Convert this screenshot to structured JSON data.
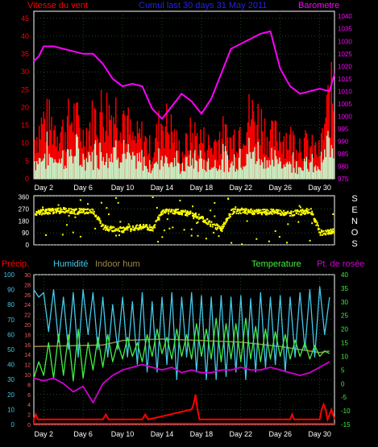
{
  "header": {
    "wind_label": "Vitesse du vent",
    "title": "Cumul last 30 days 31 May 2011",
    "baro_label": "Barometre"
  },
  "labels": {
    "senos": [
      "S",
      "E",
      "N",
      "O",
      "S"
    ],
    "precip": "Précip.",
    "humidity": "Humidité",
    "indoor": "Indoor hum",
    "temperature": "Temperature",
    "dewpoint": "Pt. de rosée"
  },
  "colors": {
    "bg": "#000000",
    "grid": "#2f7a2f",
    "wind": "#ff0000",
    "gust_fill": "#c8f5c8",
    "baro": "#ff00ff",
    "dir": "#ffff00",
    "precip": "#ff0000",
    "hum": "#44c8e8",
    "indoor": "#9c8a48",
    "temp": "#44ee44",
    "dew": "#d000d0",
    "axis_text": "#ffffff"
  },
  "chart_data": [
    {
      "type": "area",
      "title": "Cumul last 30 days 31 May 2011",
      "x_ticks": [
        "Day 2",
        "Day 6",
        "Day 10",
        "Day 14",
        "Day 18",
        "Day 22",
        "Day 26",
        "Day 30"
      ],
      "x_range": [
        1,
        31.5
      ],
      "left_axis": {
        "label": "Vitesse du vent",
        "ticks": [
          0,
          5,
          10,
          15,
          20,
          25,
          30,
          35,
          40,
          45
        ],
        "range": [
          0,
          47
        ]
      },
      "right_axis": {
        "label": "Barometre",
        "ticks": [
          975,
          980,
          985,
          990,
          995,
          1000,
          1005,
          1010,
          1015,
          1020,
          1025,
          1030,
          1035,
          1040
        ],
        "range": [
          975,
          1042
        ]
      },
      "series": [
        {
          "name": "Vitesse du vent",
          "axis": "left",
          "x": [
            1,
            2,
            3,
            4,
            5,
            6,
            7,
            8,
            9,
            10,
            11,
            12,
            13,
            14,
            15,
            16,
            17,
            18,
            19,
            20,
            21,
            22,
            23,
            24,
            25,
            26,
            27,
            28,
            29,
            30,
            31
          ],
          "values": [
            15,
            22,
            20,
            18,
            24,
            16,
            22,
            26,
            25,
            27,
            14,
            16,
            10,
            23,
            18,
            9,
            17,
            15,
            12,
            17,
            14,
            20,
            24,
            22,
            15,
            17,
            15,
            14,
            12,
            10,
            30
          ]
        },
        {
          "name": "Barometre",
          "axis": "right",
          "x": [
            1,
            1.5,
            2,
            3,
            4,
            5,
            6,
            7,
            8,
            9,
            10,
            11,
            12,
            13,
            14,
            15,
            16,
            17,
            18,
            19,
            20,
            21,
            22,
            23,
            24,
            25,
            26,
            27,
            28,
            29,
            30,
            31,
            31.5
          ],
          "values": [
            1022,
            1024,
            1028,
            1028,
            1027,
            1026,
            1025,
            1025,
            1021,
            1015,
            1012,
            1013,
            1012,
            1003,
            999,
            1004,
            1009,
            1006,
            1001,
            1007,
            1017,
            1027,
            1029,
            1031,
            1033,
            1034,
            1019,
            1012,
            1009,
            1010,
            1011,
            1010,
            1017
          ]
        }
      ]
    },
    {
      "type": "scatter",
      "title": "",
      "y_ticks": [
        0,
        90,
        180,
        270,
        360
      ],
      "range": [
        0,
        370
      ],
      "x_range": [
        1,
        31.5
      ],
      "series": [
        {
          "name": "Wind direction",
          "x": [
            1,
            2,
            3,
            4,
            5,
            6,
            7,
            8,
            9,
            10,
            11,
            12,
            13,
            14,
            15,
            16,
            17,
            18,
            19,
            20,
            21,
            22,
            23,
            24,
            25,
            26,
            27,
            28,
            29,
            30,
            31
          ],
          "values": [
            240,
            250,
            255,
            260,
            250,
            255,
            250,
            130,
            120,
            115,
            125,
            135,
            125,
            250,
            255,
            245,
            230,
            200,
            150,
            120,
            250,
            255,
            250,
            245,
            250,
            240,
            235,
            245,
            260,
            90,
            100
          ]
        }
      ]
    },
    {
      "type": "line",
      "title": "",
      "x_ticks": [
        "Day 2",
        "Day 6",
        "Day 10",
        "Day 14",
        "Day 18",
        "Day 22",
        "Day 26",
        "Day 30"
      ],
      "x_range": [
        1,
        31.5
      ],
      "humidity_axis": {
        "ticks": [
          0,
          10,
          20,
          30,
          40,
          50,
          60,
          70,
          80,
          90,
          100
        ],
        "range": [
          0,
          100
        ]
      },
      "precip_axis": {
        "ticks": [
          0,
          2,
          4,
          6,
          8,
          10,
          12,
          14,
          16,
          18,
          20,
          22,
          24,
          26,
          28,
          30
        ],
        "range": [
          0,
          30
        ]
      },
      "temp_axis": {
        "ticks": [
          -15,
          -10,
          -5,
          0,
          5,
          10,
          15,
          20,
          25,
          30,
          35,
          40
        ],
        "range": [
          -15,
          40
        ]
      },
      "series": [
        {
          "name": "Humidité",
          "axis": "humidity",
          "x": [
            1,
            1.5,
            2,
            2.5,
            3,
            3.5,
            4,
            4.5,
            5,
            5.5,
            6,
            6.5,
            7,
            7.5,
            8,
            8.5,
            9,
            9.5,
            10,
            10.5,
            11,
            11.5,
            12,
            12.5,
            13,
            13.5,
            14,
            14.5,
            15,
            15.5,
            16,
            16.5,
            17,
            17.5,
            18,
            18.5,
            19,
            19.5,
            20,
            20.5,
            21,
            21.5,
            22,
            22.5,
            23,
            23.5,
            24,
            24.5,
            25,
            25.5,
            26,
            26.5,
            27,
            27.5,
            28,
            28.5,
            29,
            29.5,
            30,
            30.5,
            31
          ],
          "values": [
            90,
            85,
            88,
            62,
            90,
            55,
            85,
            50,
            88,
            45,
            90,
            60,
            88,
            50,
            85,
            45,
            80,
            50,
            85,
            45,
            82,
            40,
            88,
            35,
            82,
            35,
            85,
            40,
            88,
            30,
            85,
            45,
            88,
            35,
            86,
            30,
            85,
            30,
            86,
            32,
            85,
            35,
            86,
            30,
            84,
            35,
            88,
            38,
            85,
            40,
            86,
            35,
            85,
            45,
            88,
            50,
            90,
            45,
            92,
            60,
            85
          ]
        },
        {
          "name": "Indoor hum",
          "axis": "humidity",
          "x": [
            1,
            8,
            10,
            14,
            18,
            22,
            26,
            30,
            31
          ],
          "values": [
            52,
            53,
            56,
            57,
            56,
            55,
            52,
            48,
            49
          ]
        },
        {
          "name": "Temperature",
          "axis": "temp",
          "x": [
            1,
            1.5,
            2,
            2.5,
            3,
            3.5,
            4,
            4.5,
            5,
            5.5,
            6,
            6.5,
            7,
            7.5,
            8,
            8.5,
            9,
            9.5,
            10,
            10.5,
            11,
            11.5,
            12,
            12.5,
            13,
            13.5,
            14,
            14.5,
            15,
            15.5,
            16,
            16.5,
            17,
            17.5,
            18,
            18.5,
            19,
            19.5,
            20,
            20.5,
            21,
            21.5,
            22,
            22.5,
            23,
            23.5,
            24,
            24.5,
            25,
            25.5,
            26,
            26.5,
            27,
            27.5,
            28,
            28.5,
            29,
            29.5,
            30,
            30.5,
            31
          ],
          "values": [
            2,
            8,
            3,
            15,
            2,
            18,
            3,
            18,
            1,
            20,
            2,
            15,
            5,
            17,
            6,
            18,
            8,
            15,
            9,
            17,
            10,
            15,
            8,
            18,
            10,
            20,
            11,
            17,
            9,
            20,
            10,
            18,
            9,
            22,
            10,
            20,
            9,
            24,
            8,
            22,
            9,
            22,
            8,
            24,
            9,
            21,
            8,
            20,
            9,
            19,
            10,
            18,
            9,
            16,
            10,
            15,
            9,
            14,
            10,
            12,
            11
          ]
        },
        {
          "name": "Pt. de rosée",
          "axis": "temp",
          "x": [
            1,
            2,
            3,
            4,
            5,
            6,
            7,
            8,
            9,
            10,
            11,
            12,
            13,
            14,
            15,
            16,
            17,
            18,
            19,
            20,
            21,
            22,
            23,
            24,
            25,
            26,
            27,
            28,
            29,
            30,
            31
          ],
          "values": [
            2,
            1,
            2,
            0,
            -3,
            -1,
            -7,
            0,
            3,
            5,
            6,
            7,
            6,
            5,
            6,
            4,
            5,
            4,
            4,
            5,
            5,
            6,
            5,
            5,
            6,
            5,
            4,
            3,
            4,
            6,
            8
          ]
        },
        {
          "name": "Précip.",
          "axis": "precip",
          "x": [
            1,
            1.2,
            1.4,
            8,
            8.3,
            8.6,
            12,
            12.3,
            12.6,
            17,
            17.2,
            17.4,
            17.6,
            17.8,
            27,
            27.2,
            27.4,
            30,
            30.2,
            30.4,
            30.6,
            30.8,
            31,
            31.2,
            31.5
          ],
          "values": [
            1,
            2,
            1,
            1,
            2,
            1,
            1,
            2,
            1,
            3,
            4,
            6,
            3,
            1,
            1,
            2,
            1,
            1,
            3,
            4,
            3,
            1,
            2,
            3,
            1
          ]
        }
      ]
    }
  ]
}
